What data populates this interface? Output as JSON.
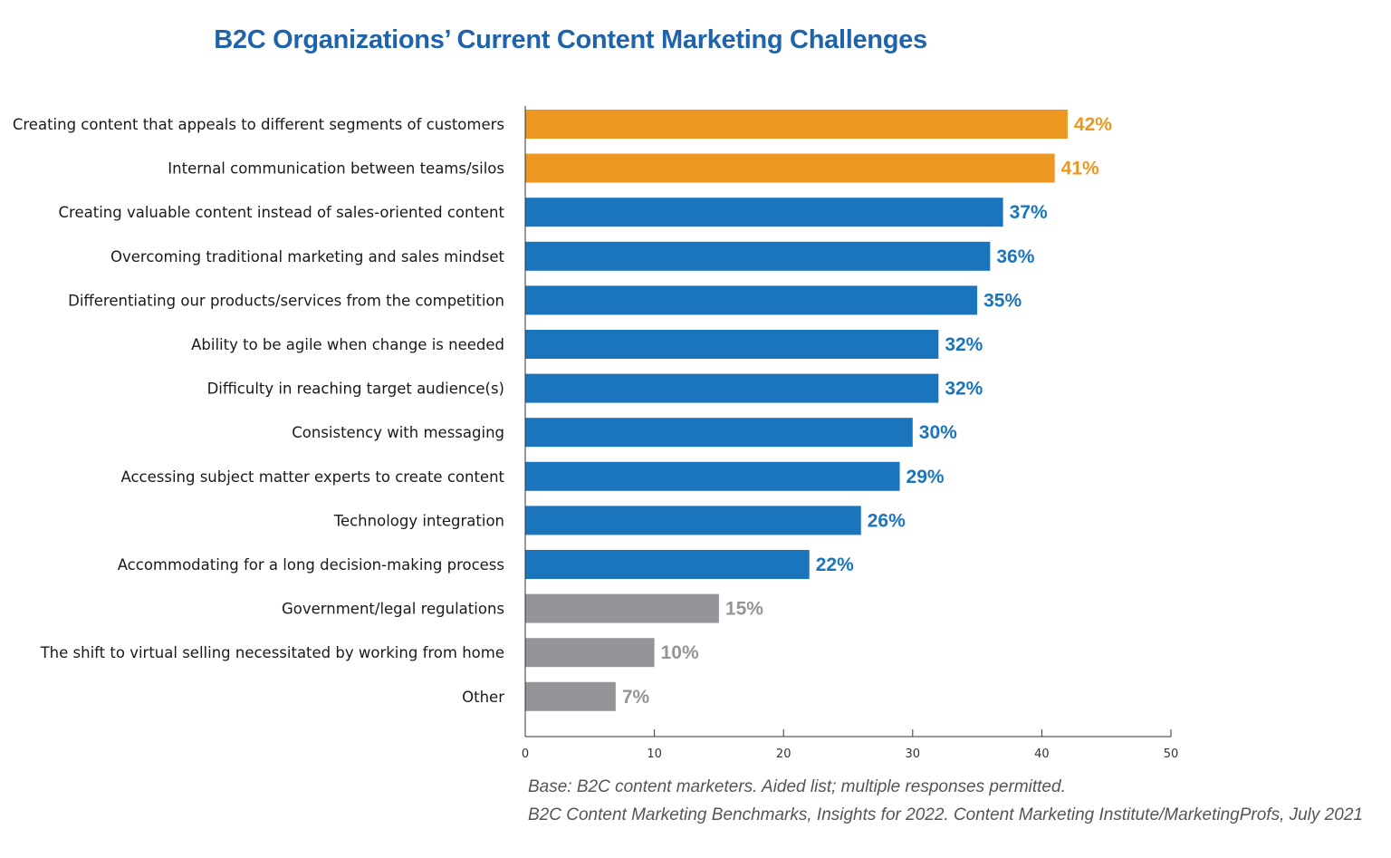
{
  "chart_data": {
    "type": "bar",
    "orientation": "horizontal",
    "title": "B2C Organizations’ Current Content Marketing Challenges",
    "categories": [
      "Creating content that appeals to different segments of customers",
      "Internal communication between teams/silos",
      "Creating valuable content instead of sales-oriented content",
      "Overcoming traditional marketing and sales mindset",
      "Differentiating our products/services from the competition",
      "Ability to be agile when change is needed",
      "Difficulty in reaching target audience(s)",
      "Consistency with messaging",
      "Accessing subject matter experts to create content",
      "Technology integration",
      "Accommodating for a long decision-making process",
      "Government/legal regulations",
      "The shift to virtual selling necessitated  by working from home",
      "Other"
    ],
    "values": [
      42,
      41,
      37,
      36,
      35,
      32,
      32,
      30,
      29,
      26,
      22,
      15,
      10,
      7
    ],
    "value_labels": [
      "42%",
      "41%",
      "37%",
      "36%",
      "35%",
      "32%",
      "32%",
      "30%",
      "29%",
      "26%",
      "22%",
      "15%",
      "10%",
      "7%"
    ],
    "groups": [
      "top",
      "top",
      "mid",
      "mid",
      "mid",
      "mid",
      "mid",
      "mid",
      "mid",
      "mid",
      "mid",
      "low",
      "low",
      "low"
    ],
    "colors": {
      "top": "#ec9722",
      "mid": "#1b75bc",
      "low": "#939598",
      "title": "#1f63ab"
    },
    "xlim": [
      0,
      50
    ],
    "xticks": [
      0,
      10,
      20,
      30,
      40,
      50
    ],
    "grid": false,
    "legend": "none"
  },
  "notes": {
    "base": "Base: B2C content marketers. Aided list; multiple responses permitted.",
    "source": "B2C Content Marketing Benchmarks, Insights for 2022. Content Marketing Institute/MarketingProfs, July 2021"
  }
}
